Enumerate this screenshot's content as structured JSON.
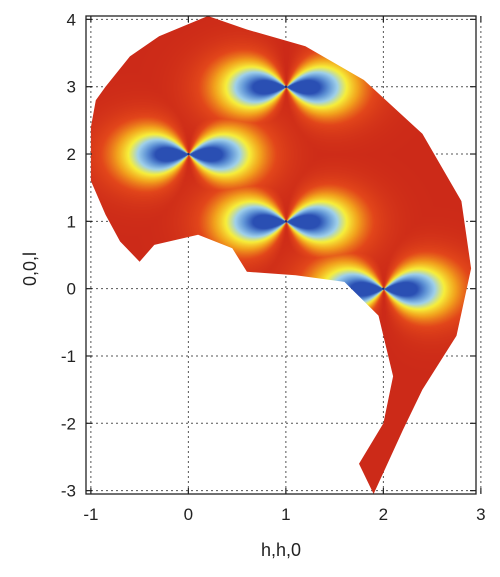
{
  "chart_data": {
    "type": "heatmap",
    "title": "",
    "xlabel": "h,h,0",
    "ylabel": "0,0,l",
    "xlim": [
      -1.05,
      2.95
    ],
    "ylim": [
      -3.05,
      4.05
    ],
    "x_ticks": [
      -1,
      0,
      1,
      2,
      3
    ],
    "y_ticks": [
      -3,
      -2,
      -1,
      0,
      1,
      2,
      3,
      4
    ],
    "x_tick_labels": [
      "-1",
      "0",
      "1",
      "2",
      "3"
    ],
    "y_tick_labels": [
      "-3",
      "-2",
      "-1",
      "0",
      "1",
      "2",
      "3",
      "4"
    ],
    "grid": true,
    "colormap": [
      "#2a4fb3",
      "#5f93d6",
      "#9fd0ea",
      "#f7ef3a",
      "#f2a21d",
      "#e2461a",
      "#cc2a18"
    ],
    "nodes": [
      {
        "h": 0,
        "l": 2
      },
      {
        "h": 1,
        "l": 3
      },
      {
        "h": 1,
        "l": 1
      },
      {
        "h": 2,
        "l": 0
      }
    ],
    "measured_region_outline": [
      [
        -0.85,
        3.0
      ],
      [
        -0.6,
        3.45
      ],
      [
        -0.3,
        3.75
      ],
      [
        0.2,
        4.05
      ],
      [
        0.6,
        3.85
      ],
      [
        1.2,
        3.6
      ],
      [
        1.8,
        3.1
      ],
      [
        2.4,
        2.3
      ],
      [
        2.8,
        1.3
      ],
      [
        2.9,
        0.3
      ],
      [
        2.75,
        -0.7
      ],
      [
        2.4,
        -1.5
      ],
      [
        2.2,
        -2.1
      ],
      [
        1.9,
        -3.05
      ],
      [
        1.75,
        -2.6
      ],
      [
        2.0,
        -2.0
      ],
      [
        2.1,
        -1.3
      ],
      [
        1.95,
        -0.4
      ],
      [
        1.6,
        0.1
      ],
      [
        1.1,
        0.2
      ],
      [
        0.6,
        0.25
      ],
      [
        0.45,
        0.6
      ],
      [
        0.1,
        0.8
      ],
      [
        -0.35,
        0.65
      ],
      [
        -0.5,
        0.4
      ],
      [
        -0.7,
        0.7
      ],
      [
        -0.85,
        1.1
      ],
      [
        -1.0,
        1.6
      ],
      [
        -1.0,
        2.4
      ],
      [
        -0.95,
        2.8
      ]
    ]
  }
}
